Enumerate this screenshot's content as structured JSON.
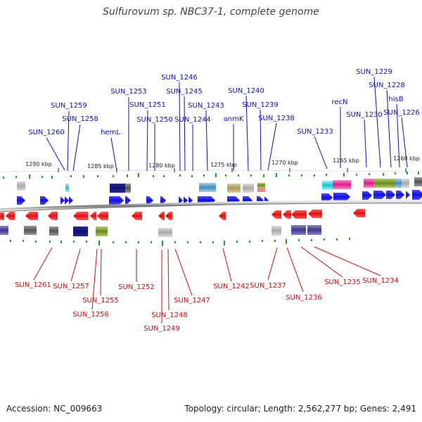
{
  "title": "Sulfurovum sp. NBC37-1, complete genome",
  "footer": {
    "accession": "Accession: NC_009663",
    "summary": "Topology: circular; Length: 2,562,277 bp; Genes: 2,491"
  },
  "scale_labels": [
    "1290 kbp",
    "1285 kbp",
    "1280 kbp",
    "1275 kbp",
    "1270 kbp",
    "1265 kbp",
    "1260 kbp"
  ],
  "top_genes": [
    "SUN_1260",
    "SUN_1259",
    "SUN_1258",
    "hemL",
    "SUN_1253",
    "SUN_1251",
    "SUN_1250",
    "SUN_1246",
    "SUN_1245",
    "SUN_1244",
    "SUN_1243",
    "anmK",
    "SUN_1240",
    "SUN_1239",
    "SUN_1238",
    "SUN_1233",
    "recN",
    "SUN_1230",
    "SUN_1229",
    "SUN_1228",
    "hisB",
    "SUN_1226"
  ],
  "bottom_genes": [
    "SUN_1261",
    "SUN_1257",
    "SUN_1255",
    "SUN_1256",
    "SUN_1252",
    "SUN_1248",
    "SUN_1249",
    "SUN_1247",
    "SUN_1242",
    "SUN_1237",
    "SUN_1236",
    "SUN_1235",
    "SUN_1234"
  ],
  "colors": {
    "forward_strand": "#1a1ae6",
    "reverse_strand": "#e61a1a",
    "forward_label": "#1010b8",
    "reverse_label": "#cc1010",
    "backbone": "#888888",
    "gc_marks": "#2a9a2a"
  }
}
